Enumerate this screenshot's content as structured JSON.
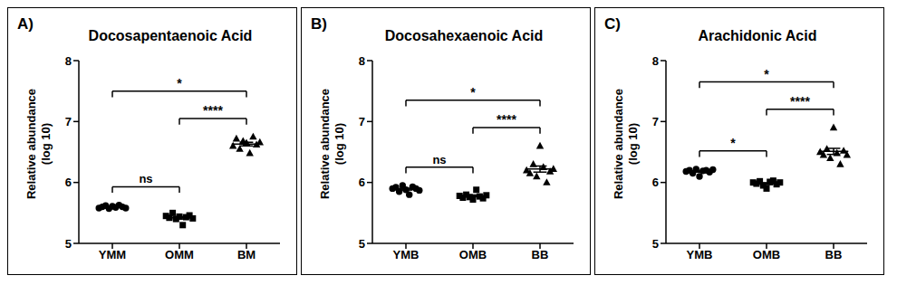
{
  "chart_data": [
    {
      "type": "scatter",
      "panel": "A)",
      "title": "Docosapentaenoic Acid",
      "y_label": "Relative abundance (log 10)",
      "ylim": [
        5,
        8
      ],
      "yticks": [
        5,
        6,
        7,
        8
      ],
      "series": [
        {
          "name": "YMM",
          "marker": "circle",
          "color": "#000000",
          "values": [
            5.58,
            5.6,
            5.62,
            5.57,
            5.61,
            5.59,
            5.63,
            5.6,
            5.58
          ],
          "mean": 5.6,
          "error": 0.01
        },
        {
          "name": "OMM",
          "marker": "square",
          "color": "#000000",
          "values": [
            5.45,
            5.42,
            5.5,
            5.4,
            5.44,
            5.3,
            5.43,
            5.46,
            5.41
          ],
          "mean": 5.42,
          "error": 0.02
        },
        {
          "name": "BM",
          "marker": "triangle",
          "color": "#000000",
          "values": [
            6.6,
            6.72,
            6.55,
            6.68,
            6.65,
            6.48,
            6.75,
            6.62,
            6.66
          ],
          "mean": 6.63,
          "error": 0.03
        }
      ],
      "annotations": [
        {
          "from": "YMM",
          "to": "OMM",
          "text": "ns"
        },
        {
          "from": "OMM",
          "to": "BM",
          "text": "****"
        },
        {
          "from": "YMM",
          "to": "BM",
          "text": "*"
        }
      ]
    },
    {
      "type": "scatter",
      "panel": "B)",
      "title": "Docosahexaenoic Acid",
      "y_label": "Relative abundance (log 10)",
      "ylim": [
        5,
        8
      ],
      "yticks": [
        5,
        6,
        7,
        8
      ],
      "series": [
        {
          "name": "YMB",
          "marker": "circle",
          "color": "#000000",
          "values": [
            5.9,
            5.92,
            5.85,
            5.95,
            5.88,
            5.8,
            5.93,
            5.9,
            5.87
          ],
          "mean": 5.89,
          "error": 0.015
        },
        {
          "name": "OMB",
          "marker": "square",
          "color": "#000000",
          "values": [
            5.78,
            5.75,
            5.8,
            5.76,
            5.72,
            5.88,
            5.77,
            5.74,
            5.79
          ],
          "mean": 5.78,
          "error": 0.015
        },
        {
          "name": "BB",
          "marker": "triangle",
          "color": "#000000",
          "values": [
            6.2,
            6.15,
            6.3,
            6.1,
            6.6,
            6.25,
            6.0,
            6.18,
            6.22
          ],
          "mean": 6.22,
          "error": 0.05
        }
      ],
      "annotations": [
        {
          "from": "YMB",
          "to": "OMB",
          "text": "ns"
        },
        {
          "from": "OMB",
          "to": "BB",
          "text": "****"
        },
        {
          "from": "YMB",
          "to": "BB",
          "text": "*"
        }
      ]
    },
    {
      "type": "scatter",
      "panel": "C)",
      "title": "Arachidonic Acid",
      "y_label": "Relative abundance (log 10)",
      "ylim": [
        5,
        8
      ],
      "yticks": [
        5,
        6,
        7,
        8
      ],
      "series": [
        {
          "name": "YMB",
          "marker": "circle",
          "color": "#000000",
          "values": [
            6.18,
            6.2,
            6.15,
            6.22,
            6.1,
            6.19,
            6.2,
            6.17,
            6.21
          ],
          "mean": 6.18,
          "error": 0.01
        },
        {
          "name": "OMB",
          "marker": "square",
          "color": "#000000",
          "values": [
            6.0,
            5.98,
            6.02,
            5.95,
            5.9,
            6.01,
            6.03,
            5.97,
            6.0
          ],
          "mean": 5.98,
          "error": 0.015
        },
        {
          "name": "BB",
          "marker": "triangle",
          "color": "#000000",
          "values": [
            6.5,
            6.45,
            6.55,
            6.4,
            6.9,
            6.48,
            6.3,
            6.52,
            6.45
          ],
          "mean": 6.51,
          "error": 0.05
        }
      ],
      "annotations": [
        {
          "from": "YMB",
          "to": "OMB",
          "text": "*"
        },
        {
          "from": "OMB",
          "to": "BB",
          "text": "****"
        },
        {
          "from": "YMB",
          "to": "BB",
          "text": "*"
        }
      ]
    }
  ]
}
